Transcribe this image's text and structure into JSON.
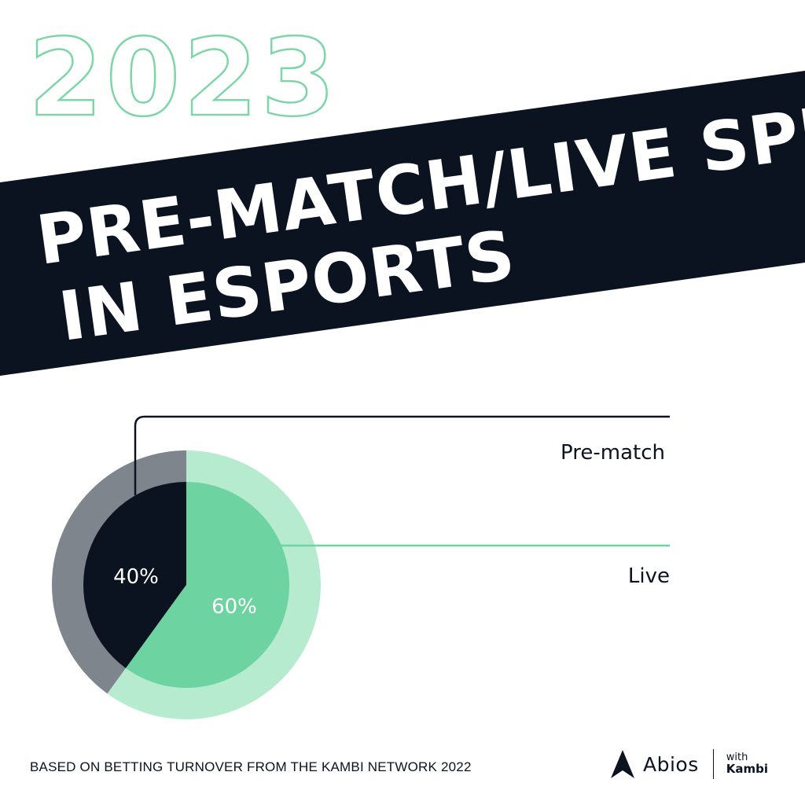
{
  "year": "2023",
  "headline": {
    "line1": "PRE-MATCH/LIVE SPLIT",
    "line2": "IN ESPORTS"
  },
  "colors": {
    "dark": "#0b1220",
    "green": "#6dd3a0",
    "green_light": "#b6ebd0",
    "gray": "#7f858c",
    "outline_green": "#7dd6a8"
  },
  "chart_data": {
    "type": "pie",
    "title": "PRE-MATCH/LIVE SPLIT IN ESPORTS",
    "labels": [
      "Pre-match",
      "Live"
    ],
    "values": [
      40,
      60
    ],
    "data_labels": [
      "40%",
      "60%"
    ],
    "colors": [
      "#0b1220",
      "#6dd3a0"
    ],
    "ring_colors": [
      "#7f858c",
      "#b6ebd0"
    ],
    "legend": "right"
  },
  "footer": {
    "note": "BASED ON BETTING TURNOVER FROM THE KAMBI NETWORK 2022",
    "brand_name": "Abios",
    "brand_with": "with",
    "brand_partner": "Kambi",
    "logo_icon": "abios-logo-icon"
  }
}
